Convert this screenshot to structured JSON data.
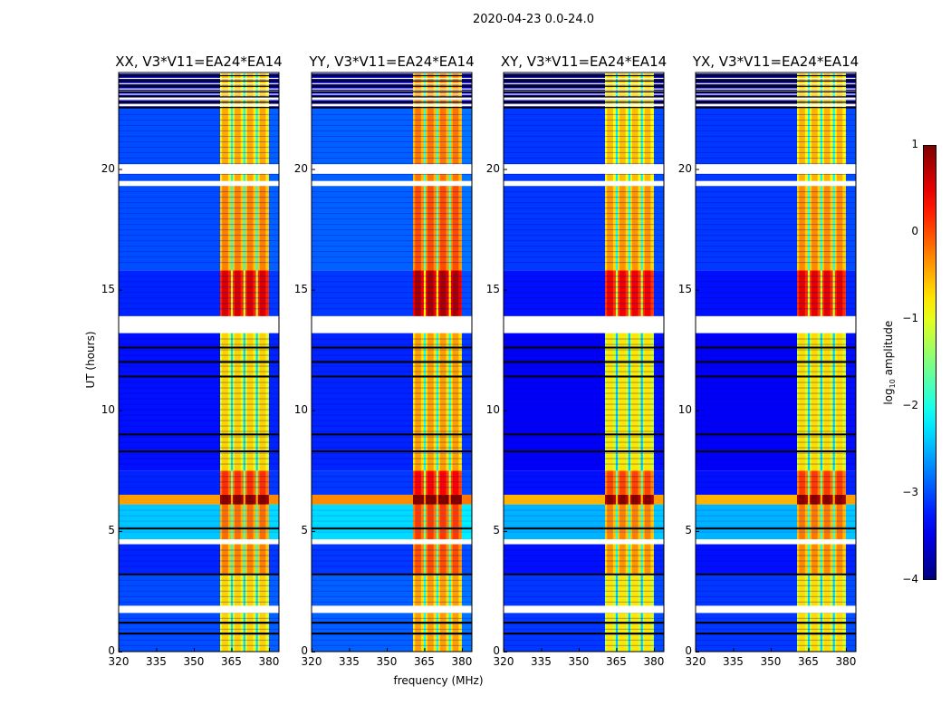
{
  "chart_data": {
    "type": "heatmap",
    "title": "2020-04-23 0.0-24.0",
    "xlabel": "frequency (MHz)",
    "ylabel": "UT (hours)",
    "xlim": [
      320,
      384
    ],
    "ylim": [
      0,
      24
    ],
    "xticks": [
      320,
      335,
      350,
      365,
      380
    ],
    "yticks": [
      0,
      5,
      10,
      15,
      20
    ],
    "panels": [
      {
        "title": "XX, V3*V11=EA24*EA14",
        "band_offset": 0.0,
        "bg_offset": 0.0
      },
      {
        "title": "YY, V3*V11=EA24*EA14",
        "band_offset": 0.25,
        "bg_offset": 0.1
      },
      {
        "title": "XY, V3*V11=EA24*EA14",
        "band_offset": -0.1,
        "bg_offset": -0.1
      },
      {
        "title": "YX, V3*V11=EA24*EA14",
        "band_offset": -0.05,
        "bg_offset": -0.1
      }
    ],
    "band_freq_range": [
      360.5,
      380
    ],
    "band_gap_freqs": [
      365.2,
      370.2,
      375.2
    ],
    "time_segments": [
      {
        "t0": 0.0,
        "t1": 3.2,
        "bg": -3.0,
        "band": -1.0
      },
      {
        "t0": 3.2,
        "t1": 4.45,
        "bg": -3.2,
        "band": -0.6
      },
      {
        "t0": 4.65,
        "t1": 6.1,
        "bg": -2.4,
        "band": -0.5
      },
      {
        "t0": 6.1,
        "t1": 6.5,
        "bg": -0.4,
        "band": 0.85
      },
      {
        "t0": 6.5,
        "t1": 7.5,
        "bg": -3.2,
        "band": -0.2
      },
      {
        "t0": 7.5,
        "t1": 13.2,
        "bg": -3.3,
        "band": -1.0
      },
      {
        "t0": 13.9,
        "t1": 15.8,
        "bg": -3.2,
        "band": 0.2
      },
      {
        "t0": 15.8,
        "t1": 19.3,
        "bg": -3.0,
        "band": -0.6
      },
      {
        "t0": 19.5,
        "t1": 22.5,
        "bg": -3.0,
        "band": -0.8
      },
      {
        "t0": 22.5,
        "t1": 24.0,
        "bg": -3.9,
        "band": -0.9
      }
    ],
    "flagged_ranges": [
      [
        1.6,
        1.9
      ],
      [
        4.45,
        4.65
      ],
      [
        13.2,
        13.9
      ],
      [
        19.3,
        19.5
      ],
      [
        19.8,
        20.2
      ],
      [
        22.6,
        22.7
      ],
      [
        22.9,
        23.0
      ],
      [
        23.2,
        23.25
      ]
    ],
    "black_lines": [
      0.75,
      1.2,
      3.2,
      5.1,
      8.3,
      9.0,
      11.4,
      12.0,
      12.6
    ],
    "colorbar": {
      "label_prefix": "log",
      "label_sub": "10",
      "label_suffix": " amplitude",
      "range": [
        -4,
        1
      ],
      "ticks": [
        "1",
        "0",
        "−1",
        "−2",
        "−3",
        "−4"
      ]
    }
  }
}
